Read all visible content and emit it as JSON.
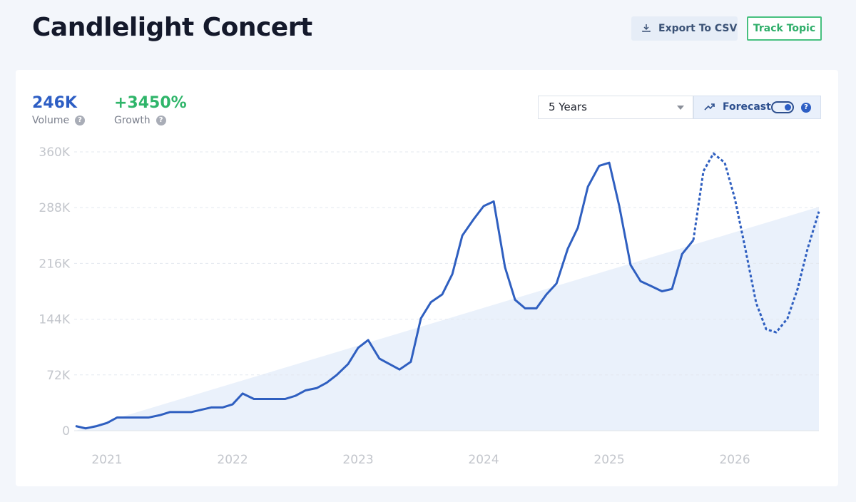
{
  "header": {
    "title": "Candlelight Concert",
    "export_button": "Export To CSV",
    "track_button": "Track Topic"
  },
  "metrics": [
    {
      "value": "246K",
      "label": "Volume"
    },
    {
      "value": "+3450%",
      "label": "Growth"
    }
  ],
  "controls": {
    "range": "5 Years",
    "forecast_label": "Forecast",
    "forecast": true
  },
  "chart_data": {
    "type": "line",
    "grid": true,
    "x": [
      2020.75,
      2020.83,
      2020.92,
      2021,
      2021.08,
      2021.17,
      2021.25,
      2021.33,
      2021.42,
      2021.5,
      2021.58,
      2021.67,
      2021.75,
      2021.83,
      2021.92,
      2022,
      2022.08,
      2022.17,
      2022.25,
      2022.33,
      2022.42,
      2022.5,
      2022.58,
      2022.67,
      2022.75,
      2022.83,
      2022.92,
      2023,
      2023.08,
      2023.17,
      2023.25,
      2023.33,
      2023.42,
      2023.5,
      2023.58,
      2023.67,
      2023.75,
      2023.83,
      2023.92,
      2024,
      2024.08,
      2024.17,
      2024.25,
      2024.33,
      2024.42,
      2024.5,
      2024.58,
      2024.67,
      2024.75,
      2024.83,
      2024.92,
      2025,
      2025.08,
      2025.17,
      2025.25,
      2025.33,
      2025.42,
      2025.5,
      2025.58,
      2025.67,
      2025.75,
      2025.83,
      2025.92,
      2026,
      2026.08,
      2026.17,
      2026.25,
      2026.33,
      2026.42,
      2026.5,
      2026.58,
      2026.67
    ],
    "series": [
      {
        "color": "#2f5fc0",
        "dashed": false,
        "values": [
          6000,
          3000,
          6000,
          10000,
          17000,
          17000,
          17000,
          17000,
          20000,
          24000,
          24000,
          24000,
          27000,
          30000,
          30000,
          34000,
          48000,
          41000,
          41000,
          41000,
          41000,
          45000,
          52000,
          55000,
          62000,
          72000,
          86000,
          107000,
          117000,
          93000,
          86000,
          79000,
          89000,
          145000,
          166000,
          176000,
          202000,
          252000,
          273000,
          290000,
          296000,
          211000,
          169000,
          158000,
          158000,
          176000,
          190000,
          235000,
          262000,
          315000,
          342000,
          346000,
          290000,
          214000,
          193000,
          187000,
          180000,
          183000,
          228000,
          246000,
          null,
          null,
          null,
          null,
          null,
          null,
          null,
          null,
          null,
          null,
          null,
          null
        ]
      },
      {
        "color": "#2f5fc0",
        "dashed": true,
        "values": [
          null,
          null,
          null,
          null,
          null,
          null,
          null,
          null,
          null,
          null,
          null,
          null,
          null,
          null,
          null,
          null,
          null,
          null,
          null,
          null,
          null,
          null,
          null,
          null,
          null,
          null,
          null,
          null,
          null,
          null,
          null,
          null,
          null,
          null,
          null,
          null,
          null,
          null,
          null,
          null,
          null,
          null,
          null,
          null,
          null,
          null,
          null,
          null,
          null,
          null,
          null,
          null,
          null,
          null,
          null,
          null,
          null,
          null,
          null,
          246000,
          335000,
          358000,
          346000,
          300000,
          238000,
          165000,
          131000,
          127000,
          145000,
          183000,
          235000,
          283000
        ]
      }
    ],
    "trend": {
      "color": "#eaf1fb",
      "x": [
        2020.75,
        2026.67
      ],
      "values": [
        0,
        289000
      ]
    },
    "xlim": [
      2020.75,
      2026.67
    ],
    "xticks": [
      2021,
      2022,
      2023,
      2024,
      2025,
      2026
    ],
    "ylim": [
      0,
      360000
    ],
    "yticks": [
      0,
      {
        "value": 72000,
        "label": "72K"
      },
      {
        "value": 144000,
        "label": "144K"
      },
      {
        "value": 216000,
        "label": "216K"
      },
      {
        "value": 288000,
        "label": "288K"
      },
      {
        "value": 360000,
        "label": "360K"
      }
    ]
  }
}
